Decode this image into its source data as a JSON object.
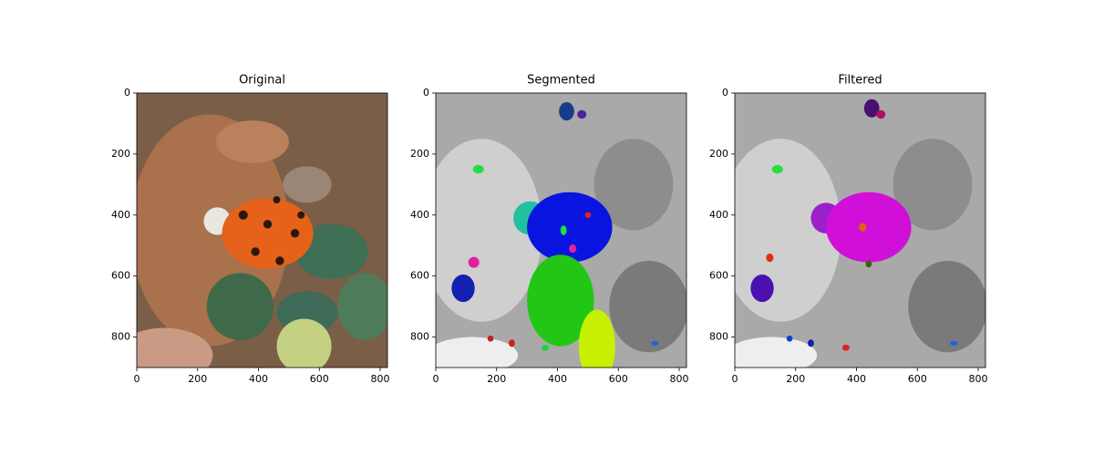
{
  "chart_data": [
    {
      "type": "image",
      "title": "Original",
      "xlim": [
        0,
        824
      ],
      "ylim": [
        900,
        0
      ],
      "xticks": [
        0,
        200,
        400,
        600,
        800
      ],
      "yticks": [
        0,
        200,
        400,
        600,
        800
      ]
    },
    {
      "type": "image",
      "title": "Segmented",
      "xlim": [
        0,
        824
      ],
      "ylim": [
        900,
        0
      ],
      "xticks": [
        0,
        200,
        400,
        600,
        800
      ],
      "yticks": [
        0,
        200,
        400,
        600,
        800
      ]
    },
    {
      "type": "image",
      "title": "Filtered",
      "xlim": [
        0,
        824
      ],
      "ylim": [
        900,
        0
      ],
      "xticks": [
        0,
        200,
        400,
        600,
        800
      ],
      "yticks": [
        0,
        200,
        400,
        600,
        800
      ]
    }
  ]
}
